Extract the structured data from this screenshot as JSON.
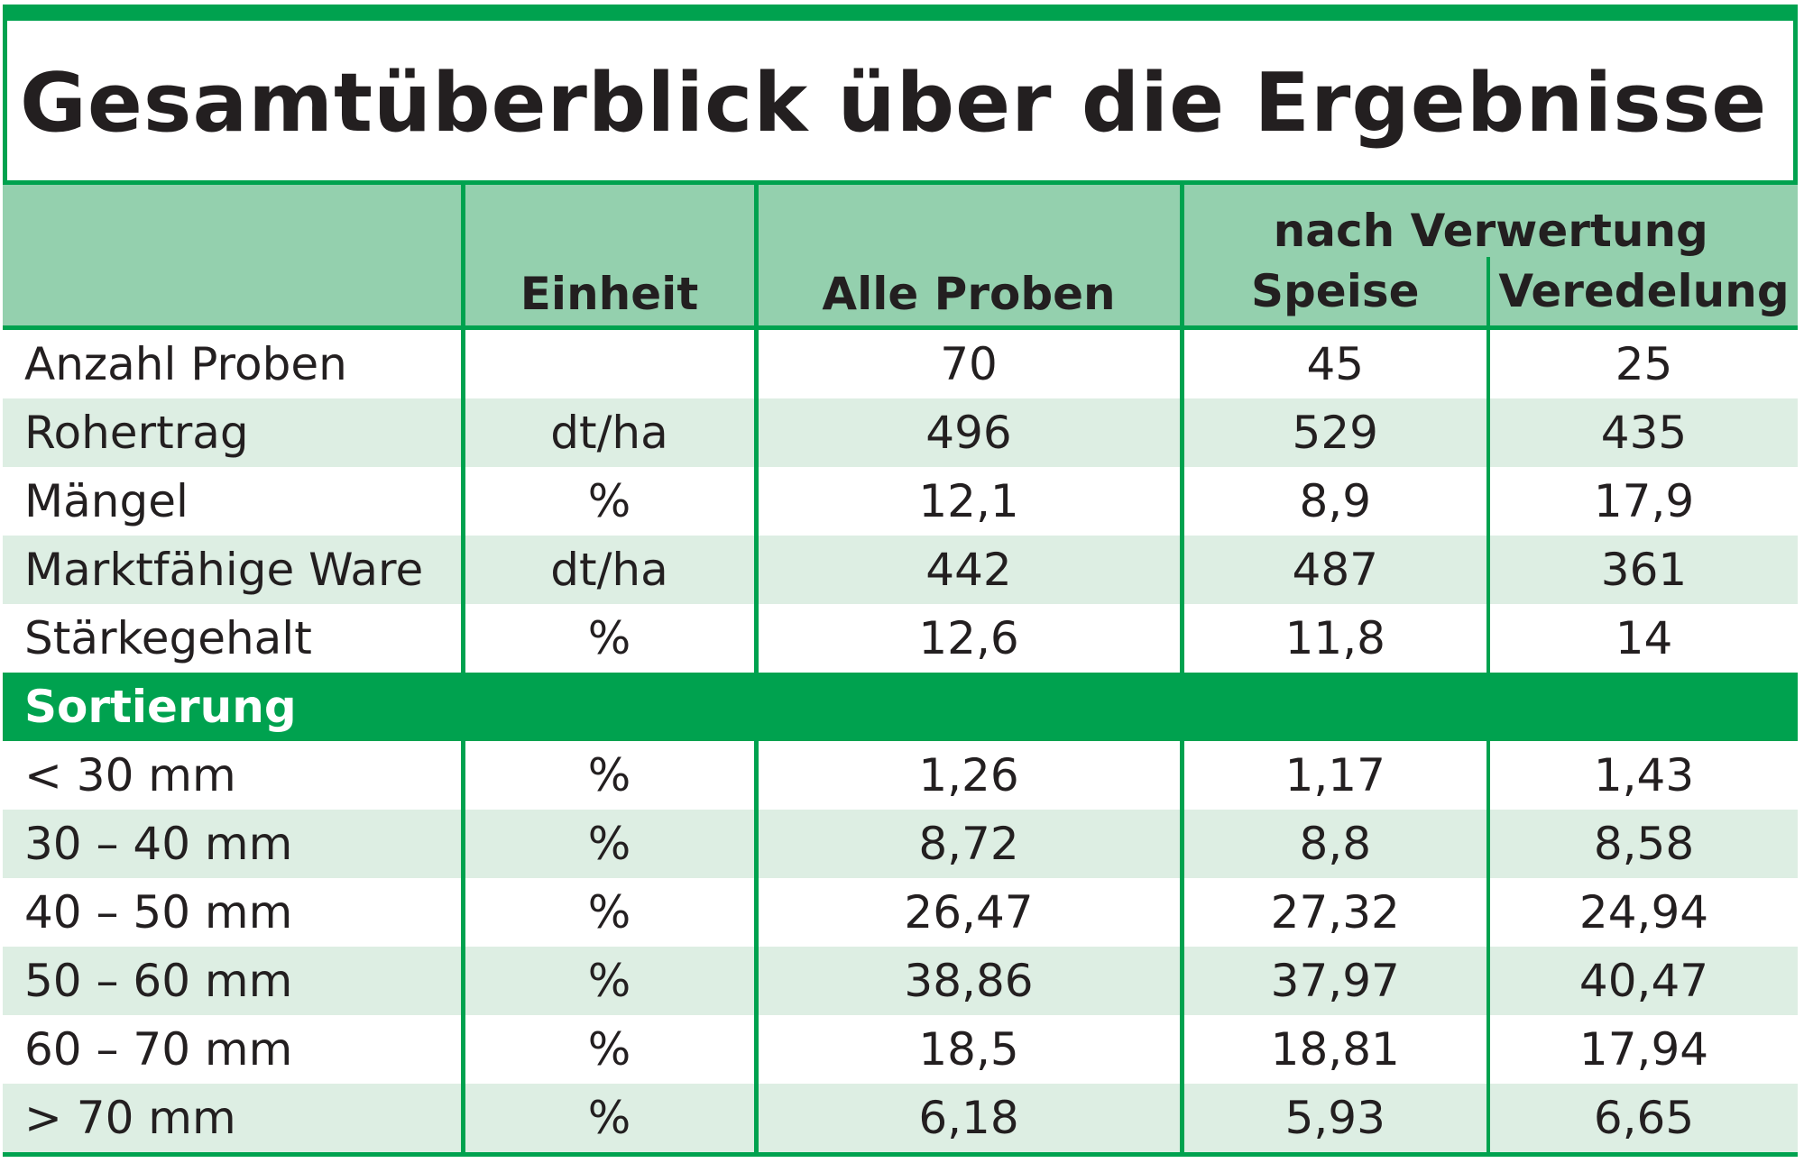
{
  "title": "Gesamtüberblick über die Ergebnisse",
  "chart_data": {
    "type": "table",
    "group_header": "nach Verwertung",
    "columns": [
      "",
      "Einheit",
      "Alle Proben",
      "Speise",
      "Veredelung"
    ],
    "rows": [
      [
        "Anzahl Proben",
        "",
        "70",
        "45",
        "25"
      ],
      [
        "Rohertrag",
        "dt/ha",
        "496",
        "529",
        "435"
      ],
      [
        "Mängel",
        "%",
        "12,1",
        "8,9",
        "17,9"
      ],
      [
        "Marktfähige Ware",
        "dt/ha",
        "442",
        "487",
        "361"
      ],
      [
        "Stärkegehalt",
        "%",
        "12,6",
        "11,8",
        "14"
      ]
    ],
    "section_label": "Sortierung",
    "section_rows": [
      [
        "< 30 mm",
        "%",
        "1,26",
        "1,17",
        "1,43"
      ],
      [
        "30 – 40 mm",
        "%",
        "8,72",
        "8,8",
        "8,58"
      ],
      [
        "40 – 50 mm",
        "%",
        "26,47",
        "27,32",
        "24,94"
      ],
      [
        "50 – 60 mm",
        "%",
        "38,86",
        "37,97",
        "40,47"
      ],
      [
        "60 – 70 mm",
        "%",
        "18,5",
        "18,81",
        "17,94"
      ],
      [
        "> 70 mm",
        "%",
        "6,18",
        "5,93",
        "6,65"
      ]
    ]
  },
  "colors": {
    "accent": "#00a24f",
    "header_fill": "#94d0ae",
    "band_fill": "#ddeee3"
  }
}
